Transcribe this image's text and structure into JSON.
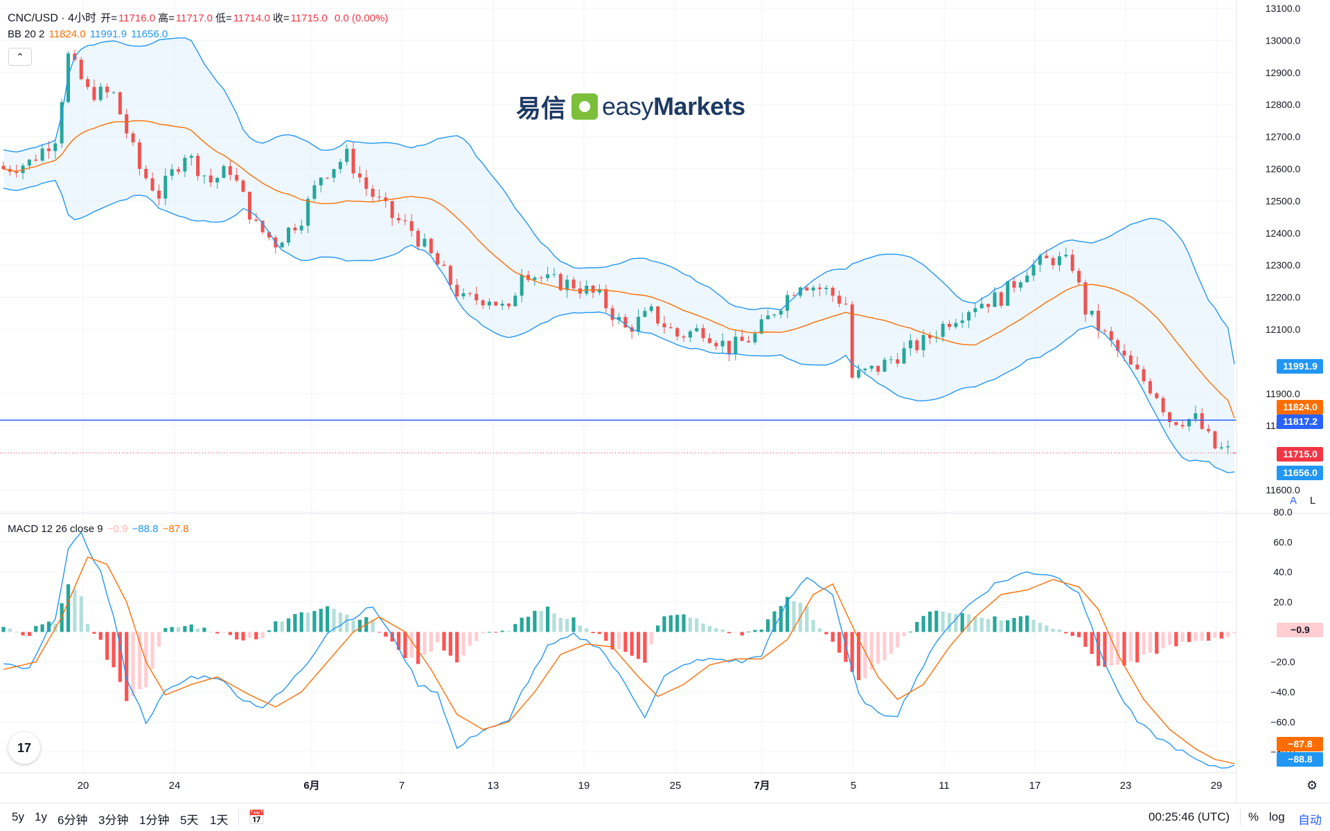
{
  "header": {
    "symbol": "CNC/USD · 4小时",
    "ohlc": [
      {
        "label": "开=",
        "value": "11716.0"
      },
      {
        "label": "高=",
        "value": "11717.0"
      },
      {
        "label": "低=",
        "value": "11714.0"
      },
      {
        "label": "收=",
        "value": "11715.0"
      }
    ],
    "change": "0.0 (0.00%)",
    "bb_label": "BB 20 2",
    "bb_values": [
      "11824.0",
      "11991.9",
      "11656.0"
    ],
    "collapse_icon": "chevron-up-icon",
    "macd_label": "MACD 12 26 close 9",
    "macd_values": [
      "−0.9",
      "−88.8",
      "−87.8"
    ]
  },
  "watermark": {
    "cn": "易信",
    "en_light": "easy",
    "en_bold": "Markets"
  },
  "colors": {
    "up": "#26a69a",
    "down": "#ef5350",
    "bb_band": "#2196f3",
    "bb_basis": "#ff6d00",
    "band_fill": "#e3f2fd",
    "macd_line": "#2196f3",
    "signal_line": "#ff6d00",
    "hist_up_strong": "#26a69a",
    "hist_up_weak": "#b2dfdb",
    "hist_down_strong": "#ff5252",
    "hist_down_weak": "#ffcdd2",
    "crosshair": "#2962ff"
  },
  "price_axis": {
    "ticks": [
      "13100.0",
      "13000.0",
      "12900.0",
      "12800.0",
      "12700.0",
      "12600.0",
      "12500.0",
      "12400.0",
      "12300.0",
      "12200.0",
      "12100.0",
      "11900.0",
      "11800.0",
      "11600.0"
    ],
    "range": [
      11600,
      13100
    ],
    "badges": [
      {
        "value": "11991.9",
        "color": "#2196f3"
      },
      {
        "value": "11824.0",
        "color": "#ff6d00"
      },
      {
        "value": "11817.2",
        "color": "#2962ff"
      },
      {
        "value": "11715.0",
        "color": "#f23645"
      },
      {
        "value": "11656.0",
        "color": "#2196f3"
      }
    ],
    "scale_buttons": [
      "A",
      "L"
    ]
  },
  "macd_axis": {
    "ticks": [
      "80.0",
      "60.0",
      "40.0",
      "20.0",
      "−20.0",
      "−40.0",
      "−60.0",
      "−80.0"
    ],
    "range": [
      -100,
      80
    ],
    "badges": [
      {
        "value": "−0.9",
        "color": "#ffcdd2"
      },
      {
        "value": "−87.8",
        "color": "#ff6d00"
      },
      {
        "value": "−88.8",
        "color": "#2196f3"
      }
    ]
  },
  "time_axis": {
    "labels": [
      "20",
      "24",
      "6月",
      "7",
      "13",
      "19",
      "25",
      "7月",
      "5",
      "11",
      "17",
      "23",
      "29"
    ]
  },
  "chart_data": {
    "type": "candlestick",
    "interval": "4h",
    "horizontal_line": 11817.2,
    "last_price": 11715.0,
    "ylim": [
      11600,
      13100
    ],
    "bb": {
      "basis_last": 11824.0,
      "upper_last": 11991.9,
      "lower_last": 11656.0
    },
    "price_path": [
      [
        0,
        12600
      ],
      [
        4,
        12620
      ],
      [
        8,
        12700
      ],
      [
        10,
        12950
      ],
      [
        13,
        12840
      ],
      [
        17,
        12830
      ],
      [
        21,
        12600
      ],
      [
        24,
        12520
      ],
      [
        28,
        12650
      ],
      [
        32,
        12560
      ],
      [
        35,
        12600
      ],
      [
        39,
        12420
      ],
      [
        42,
        12370
      ],
      [
        46,
        12450
      ],
      [
        49,
        12580
      ],
      [
        53,
        12640
      ],
      [
        56,
        12540
      ],
      [
        60,
        12450
      ],
      [
        63,
        12410
      ],
      [
        67,
        12300
      ],
      [
        71,
        12190
      ],
      [
        75,
        12200
      ],
      [
        78,
        12150
      ],
      [
        80,
        12290
      ],
      [
        84,
        12250
      ],
      [
        88,
        12240
      ],
      [
        92,
        12200
      ],
      [
        96,
        12100
      ],
      [
        100,
        12150
      ],
      [
        104,
        12080
      ],
      [
        108,
        12100
      ],
      [
        112,
        12040
      ],
      [
        116,
        12080
      ],
      [
        119,
        12160
      ],
      [
        123,
        12250
      ],
      [
        127,
        12220
      ],
      [
        130,
        12180
      ],
      [
        131,
        11950
      ],
      [
        135,
        11980
      ],
      [
        138,
        12020
      ],
      [
        142,
        12060
      ],
      [
        146,
        12130
      ],
      [
        150,
        12180
      ],
      [
        154,
        12200
      ],
      [
        158,
        12290
      ],
      [
        162,
        12320
      ],
      [
        165,
        12300
      ],
      [
        167,
        12160
      ],
      [
        170,
        12080
      ],
      [
        174,
        11980
      ],
      [
        178,
        11900
      ],
      [
        180,
        11820
      ],
      [
        184,
        11820
      ],
      [
        187,
        11730
      ],
      [
        190,
        11715
      ]
    ],
    "macd_path": [
      [
        0,
        -22
      ],
      [
        4,
        -25
      ],
      [
        8,
        10
      ],
      [
        10,
        55
      ],
      [
        12,
        65
      ],
      [
        15,
        40
      ],
      [
        17,
        10
      ],
      [
        19,
        -30
      ],
      [
        22,
        -60
      ],
      [
        25,
        -40
      ],
      [
        29,
        -30
      ],
      [
        33,
        -30
      ],
      [
        37,
        -45
      ],
      [
        40,
        -50
      ],
      [
        43,
        -40
      ],
      [
        47,
        -20
      ],
      [
        50,
        0
      ],
      [
        54,
        10
      ],
      [
        57,
        17
      ],
      [
        61,
        -10
      ],
      [
        64,
        -35
      ],
      [
        67,
        -40
      ],
      [
        70,
        -78
      ],
      [
        74,
        -65
      ],
      [
        78,
        -60
      ],
      [
        80,
        -40
      ],
      [
        84,
        -10
      ],
      [
        88,
        -2
      ],
      [
        92,
        -10
      ],
      [
        96,
        -35
      ],
      [
        99,
        -56
      ],
      [
        102,
        -30
      ],
      [
        106,
        -20
      ],
      [
        110,
        -18
      ],
      [
        114,
        -20
      ],
      [
        117,
        -15
      ],
      [
        121,
        20
      ],
      [
        124,
        37
      ],
      [
        128,
        25
      ],
      [
        130,
        -10
      ],
      [
        132,
        -42
      ],
      [
        135,
        -55
      ],
      [
        138,
        -55
      ],
      [
        141,
        -30
      ],
      [
        145,
        0
      ],
      [
        149,
        18
      ],
      [
        153,
        32
      ],
      [
        158,
        40
      ],
      [
        162,
        38
      ],
      [
        166,
        27
      ],
      [
        169,
        -10
      ],
      [
        172,
        -40
      ],
      [
        175,
        -60
      ],
      [
        178,
        -70
      ],
      [
        182,
        -80
      ],
      [
        185,
        -88
      ],
      [
        188,
        -90
      ],
      [
        190,
        -88.8
      ]
    ],
    "signal_path": [
      [
        0,
        -25
      ],
      [
        5,
        -20
      ],
      [
        9,
        10
      ],
      [
        13,
        50
      ],
      [
        16,
        45
      ],
      [
        19,
        20
      ],
      [
        22,
        -20
      ],
      [
        25,
        -42
      ],
      [
        29,
        -35
      ],
      [
        33,
        -30
      ],
      [
        38,
        -42
      ],
      [
        42,
        -50
      ],
      [
        46,
        -40
      ],
      [
        50,
        -20
      ],
      [
        54,
        0
      ],
      [
        58,
        10
      ],
      [
        62,
        0
      ],
      [
        66,
        -25
      ],
      [
        70,
        -55
      ],
      [
        74,
        -65
      ],
      [
        78,
        -60
      ],
      [
        82,
        -40
      ],
      [
        86,
        -15
      ],
      [
        90,
        -8
      ],
      [
        94,
        -10
      ],
      [
        98,
        -30
      ],
      [
        101,
        -43
      ],
      [
        105,
        -35
      ],
      [
        109,
        -22
      ],
      [
        113,
        -18
      ],
      [
        117,
        -18
      ],
      [
        121,
        -5
      ],
      [
        125,
        25
      ],
      [
        128,
        32
      ],
      [
        132,
        -5
      ],
      [
        135,
        -30
      ],
      [
        138,
        -45
      ],
      [
        142,
        -35
      ],
      [
        146,
        -10
      ],
      [
        150,
        10
      ],
      [
        154,
        25
      ],
      [
        158,
        28
      ],
      [
        162,
        35
      ],
      [
        166,
        30
      ],
      [
        169,
        15
      ],
      [
        172,
        -15
      ],
      [
        176,
        -45
      ],
      [
        180,
        -65
      ],
      [
        184,
        -78
      ],
      [
        187,
        -85
      ],
      [
        190,
        -87.8
      ]
    ]
  },
  "bottom": {
    "timeframes": [
      "5y",
      "1y",
      "6分钟",
      "3分钟",
      "1分钟",
      "5天",
      "1天"
    ],
    "calendar_icon": "calendar-goto-icon",
    "clock": "00:25:46 (UTC)",
    "options": [
      "%",
      "log",
      "自动"
    ],
    "settings_icon": "gear-icon",
    "logo": "tradingview-logo-icon"
  }
}
